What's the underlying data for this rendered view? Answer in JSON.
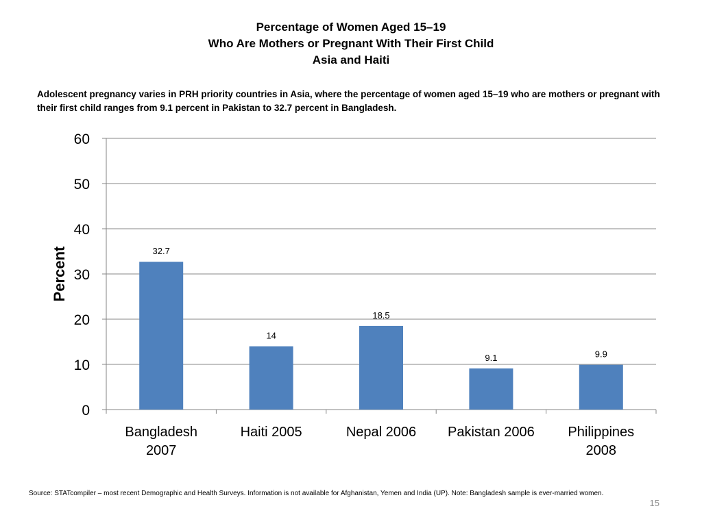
{
  "slide": {
    "title_lines": [
      "Percentage of Women Aged 15–19",
      "Who Are Mothers or Pregnant With Their First Child",
      "Asia and Haiti"
    ],
    "subtitle": "Adolescent pregnancy varies in PRH priority countries in Asia, where the percentage of women aged 15–19 who are mothers or pregnant with their first child ranges from 9.1 percent in Pakistan to 32.7 percent in Bangladesh.",
    "source": "Source: STATcompiler – most recent Demographic and Health Surveys. Information is not available for Afghanistan, Yemen and India (UP). Note: Bangladesh sample is ever-married women.",
    "page_number": "15"
  },
  "chart_data": {
    "type": "bar",
    "categories": [
      [
        "Bangladesh",
        "2007"
      ],
      [
        "Haiti 2005"
      ],
      [
        "Nepal 2006"
      ],
      [
        "Pakistan 2006"
      ],
      [
        "Philippines",
        "2008"
      ]
    ],
    "values": [
      32.7,
      14,
      18.5,
      9.1,
      9.9
    ],
    "data_labels": [
      "32.7",
      "14",
      "18.5",
      "9.1",
      "9.9"
    ],
    "ylabel": "Percent",
    "xlabel": "",
    "ylim": [
      0,
      60
    ],
    "yticks": [
      0,
      10,
      20,
      30,
      40,
      50,
      60
    ],
    "grid": true,
    "bar_color": "#4f81bd",
    "gridline_color": "#878787",
    "axis_color": "#868686"
  }
}
